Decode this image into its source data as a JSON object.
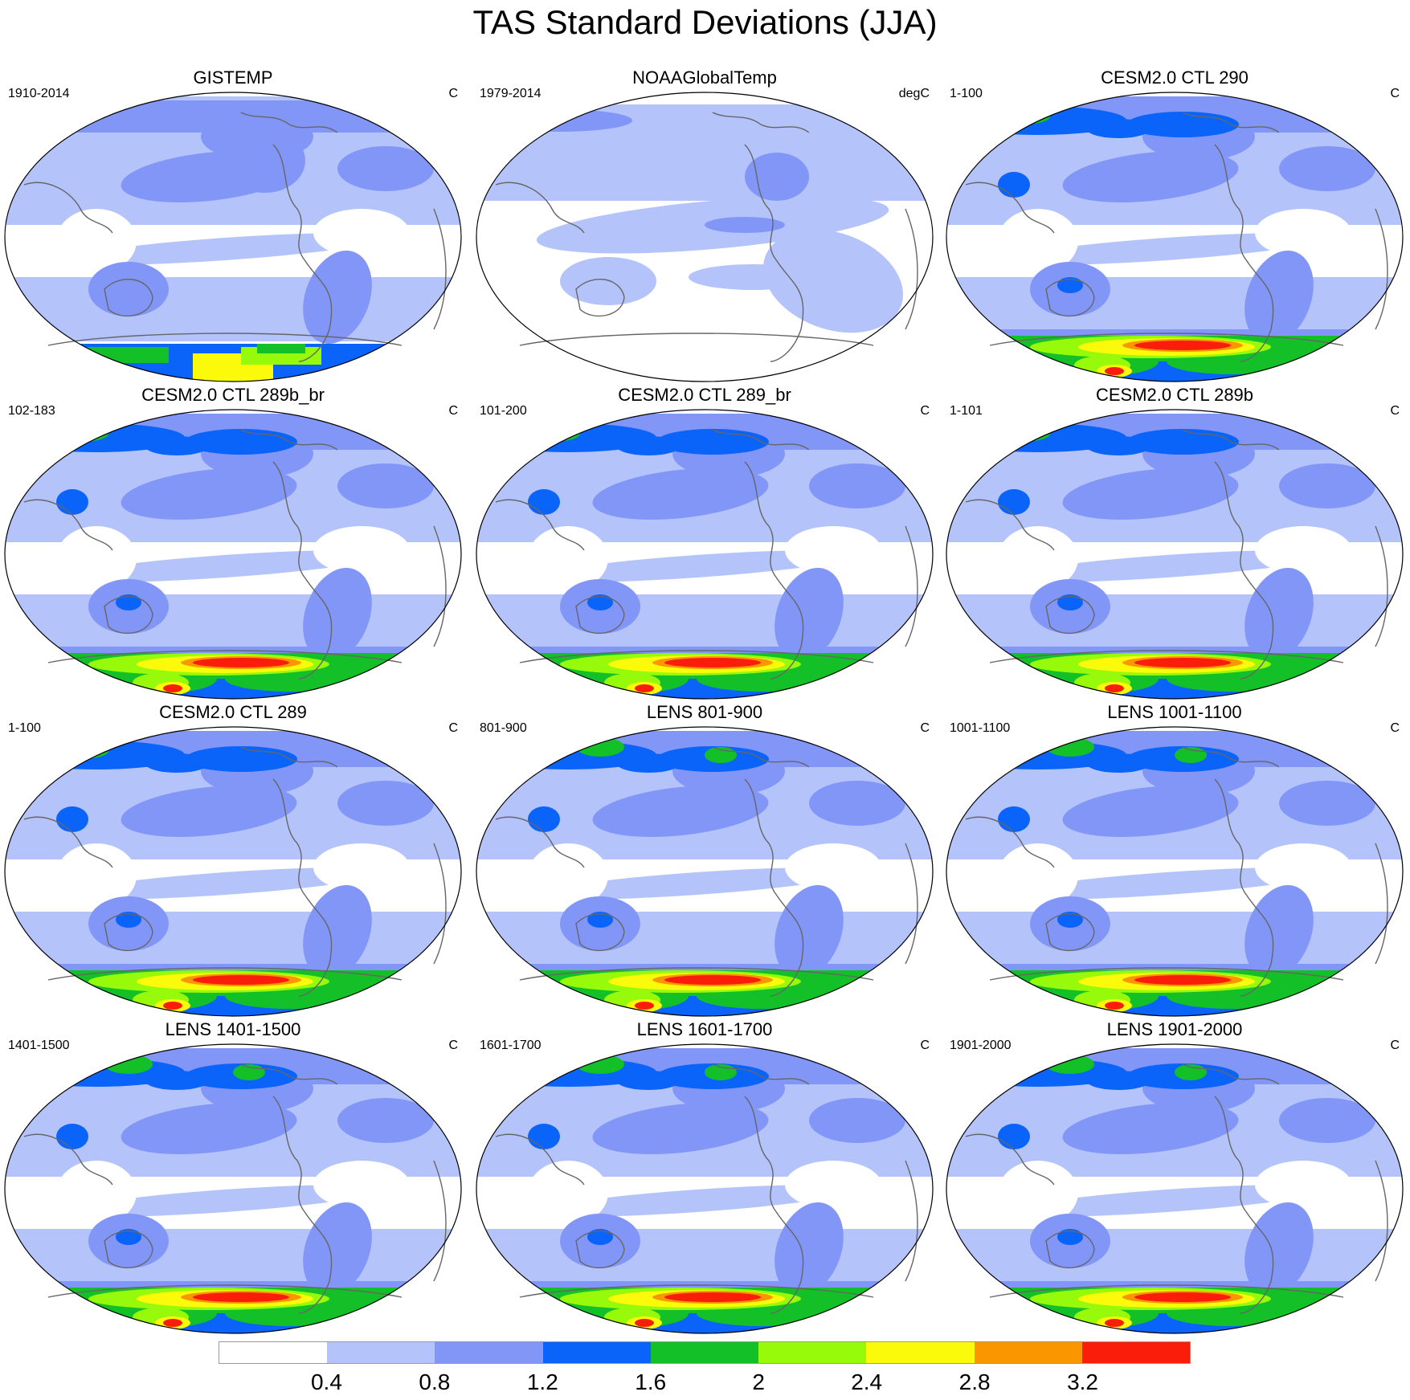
{
  "title": "TAS Standard Deviations (JJA)",
  "panels": [
    {
      "title": "GISTEMP",
      "left": "1910-2014",
      "right": "C",
      "style": "obs1"
    },
    {
      "title": "NOAAGlobalTemp",
      "left": "1979-2014",
      "right": "degC",
      "style": "obs2"
    },
    {
      "title": "CESM2.0 CTL 290",
      "left": "1-100",
      "right": "C",
      "style": "model"
    },
    {
      "title": "CESM2.0 CTL 289b_br",
      "left": "102-183",
      "right": "C",
      "style": "model"
    },
    {
      "title": "CESM2.0 CTL 289_br",
      "left": "101-200",
      "right": "C",
      "style": "model"
    },
    {
      "title": "CESM2.0 CTL 289b",
      "left": "1-101",
      "right": "C",
      "style": "model"
    },
    {
      "title": "CESM2.0 CTL 289",
      "left": "1-100",
      "right": "C",
      "style": "model"
    },
    {
      "title": "LENS 801-900",
      "left": "801-900",
      "right": "C",
      "style": "lens"
    },
    {
      "title": "LENS 1001-1100",
      "left": "1001-1100",
      "right": "C",
      "style": "lens"
    },
    {
      "title": "LENS 1401-1500",
      "left": "1401-1500",
      "right": "C",
      "style": "lens"
    },
    {
      "title": "LENS 1601-1700",
      "left": "1601-1700",
      "right": "C",
      "style": "lens"
    },
    {
      "title": "LENS 1901-2000",
      "left": "1901-2000",
      "right": "C",
      "style": "lens"
    }
  ],
  "colorbar": {
    "colors": [
      "#ffffff",
      "#b4c4fa",
      "#8296f8",
      "#0a64fa",
      "#14c028",
      "#96fa0a",
      "#fafa0a",
      "#fa9600",
      "#fa1e0a"
    ],
    "labels": [
      "0.4",
      "0.8",
      "1.2",
      "1.6",
      "2",
      "2.4",
      "2.8",
      "3.2"
    ]
  }
}
